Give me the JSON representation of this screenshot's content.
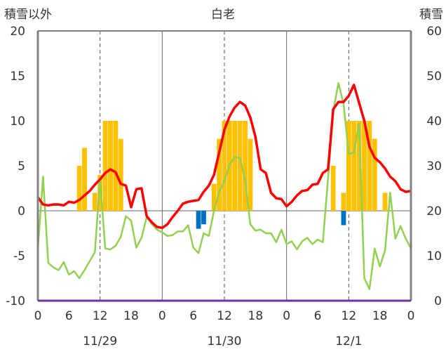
{
  "chart_data": {
    "type": "bar+line",
    "title": "白老",
    "left_axis_label": "積雪以外",
    "right_axis_label": "積雪",
    "left_ylim": [
      -10,
      20
    ],
    "left_yticks": [
      "20",
      "15",
      "10",
      "5",
      "0",
      "-5",
      "-10"
    ],
    "right_ylim": [
      0,
      60
    ],
    "right_yticks": [
      "60",
      "50",
      "40",
      "30",
      "20",
      "10",
      "0"
    ],
    "x_tick_labels": [
      "0",
      "6",
      "12",
      "18",
      "0",
      "6",
      "12",
      "18",
      "0",
      "6",
      "12",
      "18",
      "0"
    ],
    "date_labels": [
      "11/29",
      "11/30",
      "12/1"
    ],
    "x_hours_range": [
      0,
      72
    ],
    "grid": "dashed vertical lines at 12h; solid vertical lines at day boundaries",
    "colors": {
      "red_line": "#ff0000",
      "green_line": "#92d050",
      "orange_bars": "#ffc000",
      "blue_bars": "#0070c0",
      "purple_baseline": "#7030a0",
      "frame": "#808080"
    },
    "series": [
      {
        "color": "#ff0000",
        "kind": "line",
        "points": [
          [
            0,
            1.5
          ],
          [
            1,
            0.7
          ],
          [
            2,
            0.6
          ],
          [
            3,
            0.7
          ],
          [
            4,
            0.7
          ],
          [
            5,
            0.6
          ],
          [
            6,
            1.0
          ],
          [
            7,
            0.9
          ],
          [
            8,
            1.2
          ],
          [
            9,
            1.7
          ],
          [
            10,
            2.2
          ],
          [
            11,
            2.9
          ],
          [
            12,
            3.5
          ],
          [
            13,
            4.2
          ],
          [
            14,
            4.6
          ],
          [
            15,
            4.3
          ],
          [
            16,
            3.0
          ],
          [
            17,
            2.8
          ],
          [
            18,
            0.4
          ],
          [
            19,
            2.4
          ],
          [
            20,
            2.5
          ],
          [
            21,
            -0.6
          ],
          [
            22,
            -1.3
          ],
          [
            23,
            -1.8
          ],
          [
            24,
            -1.9
          ],
          [
            25,
            -1.5
          ],
          [
            26,
            -0.7
          ],
          [
            27,
            0.0
          ],
          [
            28,
            0.8
          ],
          [
            29,
            1.0
          ],
          [
            30,
            1.1
          ],
          [
            31,
            1.2
          ],
          [
            32,
            2.1
          ],
          [
            33,
            2.8
          ],
          [
            34,
            4.0
          ],
          [
            35,
            6.5
          ],
          [
            36,
            9.0
          ],
          [
            37,
            10.5
          ],
          [
            38,
            11.5
          ],
          [
            39,
            12.1
          ],
          [
            40,
            11.7
          ],
          [
            41,
            10.4
          ],
          [
            42,
            8.2
          ],
          [
            43,
            4.6
          ],
          [
            44,
            4.2
          ],
          [
            45,
            2.0
          ],
          [
            46,
            1.4
          ],
          [
            47,
            1.3
          ],
          [
            48,
            0.5
          ],
          [
            49,
            1.0
          ],
          [
            50,
            1.7
          ],
          [
            51,
            2.2
          ],
          [
            52,
            2.3
          ],
          [
            53,
            2.9
          ],
          [
            54,
            3.0
          ],
          [
            55,
            4.2
          ],
          [
            56,
            4.6
          ],
          [
            57,
            11.3
          ],
          [
            58,
            12.1
          ],
          [
            59,
            12.1
          ],
          [
            60,
            12.8
          ],
          [
            61,
            14.0
          ],
          [
            62,
            12.0
          ],
          [
            63,
            10.0
          ],
          [
            64,
            7.1
          ],
          [
            65,
            5.9
          ],
          [
            66,
            5.4
          ],
          [
            67,
            4.7
          ],
          [
            68,
            3.8
          ],
          [
            69,
            3.3
          ],
          [
            70,
            2.4
          ],
          [
            71,
            2.1
          ],
          [
            72,
            2.2
          ]
        ]
      },
      {
        "color": "#92d050",
        "kind": "line",
        "points": [
          [
            0,
            -4.2
          ],
          [
            1,
            3.8
          ],
          [
            2,
            -5.8
          ],
          [
            3,
            -6.3
          ],
          [
            4,
            -6.6
          ],
          [
            5,
            -5.7
          ],
          [
            6,
            -7.1
          ],
          [
            7,
            -6.7
          ],
          [
            8,
            -7.5
          ],
          [
            9,
            -6.6
          ],
          [
            10,
            -5.6
          ],
          [
            11,
            -4.6
          ],
          [
            12,
            3.5
          ],
          [
            13,
            -4.2
          ],
          [
            14,
            -4.3
          ],
          [
            15,
            -3.9
          ],
          [
            16,
            -2.9
          ],
          [
            17,
            -0.6
          ],
          [
            18,
            -1.1
          ],
          [
            19,
            -4.1
          ],
          [
            20,
            -3.0
          ],
          [
            21,
            -0.7
          ],
          [
            22,
            -1.5
          ],
          [
            23,
            -2.1
          ],
          [
            24,
            -2.4
          ],
          [
            25,
            -2.8
          ],
          [
            26,
            -2.7
          ],
          [
            27,
            -2.3
          ],
          [
            28,
            -2.3
          ],
          [
            29,
            -1.6
          ],
          [
            30,
            -4.1
          ],
          [
            31,
            -4.7
          ],
          [
            32,
            -2.5
          ],
          [
            33,
            -2.8
          ],
          [
            34,
            0.0
          ],
          [
            35,
            2.1
          ],
          [
            36,
            3.3
          ],
          [
            37,
            5.1
          ],
          [
            38,
            6.0
          ],
          [
            39,
            5.9
          ],
          [
            40,
            3.4
          ],
          [
            41,
            -1.5
          ],
          [
            42,
            -2.2
          ],
          [
            43,
            -2.1
          ],
          [
            44,
            -2.5
          ],
          [
            45,
            -2.5
          ],
          [
            46,
            -3.5
          ],
          [
            47,
            -2.1
          ],
          [
            48,
            -3.7
          ],
          [
            49,
            -3.4
          ],
          [
            50,
            -4.3
          ],
          [
            51,
            -3.4
          ],
          [
            52,
            -3.0
          ],
          [
            53,
            -3.7
          ],
          [
            54,
            -3.2
          ],
          [
            55,
            -3.5
          ],
          [
            56,
            3.6
          ],
          [
            57,
            11.1
          ],
          [
            58,
            14.2
          ],
          [
            59,
            11.9
          ],
          [
            60,
            6.3
          ],
          [
            61,
            6.5
          ],
          [
            62,
            9.7
          ],
          [
            63,
            -7.5
          ],
          [
            64,
            -8.7
          ],
          [
            65,
            -4.2
          ],
          [
            66,
            -6.2
          ],
          [
            67,
            -4.4
          ],
          [
            68,
            2.0
          ],
          [
            69,
            -3.1
          ],
          [
            70,
            -1.7
          ],
          [
            71,
            -3.1
          ],
          [
            72,
            -4.2
          ]
        ]
      }
    ],
    "bars": [
      {
        "color": "#ffc000",
        "kind": "bar",
        "points": [
          [
            8,
            5.0
          ],
          [
            9,
            7.0
          ],
          [
            11,
            2.0
          ],
          [
            12,
            4.0
          ],
          [
            13,
            10.0
          ],
          [
            14,
            10.0
          ],
          [
            15,
            10.0
          ],
          [
            16,
            8.0
          ],
          [
            34,
            3.0
          ],
          [
            35,
            8.0
          ],
          [
            36,
            10.0
          ],
          [
            37,
            10.0
          ],
          [
            38,
            10.0
          ],
          [
            39,
            10.0
          ],
          [
            40,
            10.0
          ],
          [
            41,
            8.0
          ],
          [
            57,
            5.0
          ],
          [
            59,
            2.0
          ],
          [
            60,
            10.0
          ],
          [
            61,
            10.0
          ],
          [
            62,
            10.0
          ],
          [
            63,
            10.0
          ],
          [
            64,
            10.0
          ],
          [
            65,
            8.0
          ],
          [
            67,
            2.0
          ]
        ]
      },
      {
        "color": "#0070c0",
        "kind": "bar",
        "points": [
          [
            31,
            -2.0
          ],
          [
            32,
            -1.5
          ],
          [
            59,
            -1.6
          ]
        ]
      }
    ]
  }
}
